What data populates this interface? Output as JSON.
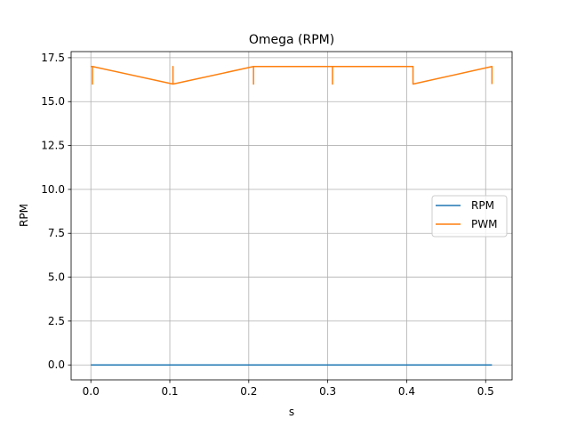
{
  "chart_data": {
    "type": "line",
    "title": "Omega (RPM)",
    "xlabel": "s",
    "ylabel": "RPM",
    "xlim": [
      -0.025,
      0.5335
    ],
    "ylim": [
      -0.85,
      17.85
    ],
    "xticks": [
      0.0,
      0.1,
      0.2,
      0.3,
      0.4,
      0.5
    ],
    "xtick_labels": [
      "0.0",
      "0.1",
      "0.2",
      "0.3",
      "0.4",
      "0.5"
    ],
    "yticks": [
      0.0,
      2.5,
      5.0,
      7.5,
      10.0,
      12.5,
      15.0,
      17.5
    ],
    "ytick_labels": [
      "0.0",
      "2.5",
      "5.0",
      "7.5",
      "10.0",
      "12.5",
      "15.0",
      "17.5"
    ],
    "grid": true,
    "legend": "center-right",
    "series": [
      {
        "name": "RPM",
        "color": "#1f77b4",
        "x": [
          0.0,
          0.508
        ],
        "y": [
          0,
          0
        ]
      },
      {
        "name": "PWM",
        "color": "#ff7f0e",
        "x": [
          0.0,
          0.002,
          0.002,
          0.002,
          0.104,
          0.104,
          0.104,
          0.206,
          0.206,
          0.206,
          0.306,
          0.306,
          0.306,
          0.408,
          0.408,
          0.408,
          0.508,
          0.508
        ],
        "y": [
          17,
          17,
          16,
          17,
          16,
          17,
          16,
          17,
          16,
          17,
          17,
          16,
          17,
          17,
          16,
          16,
          17,
          16
        ]
      }
    ]
  }
}
